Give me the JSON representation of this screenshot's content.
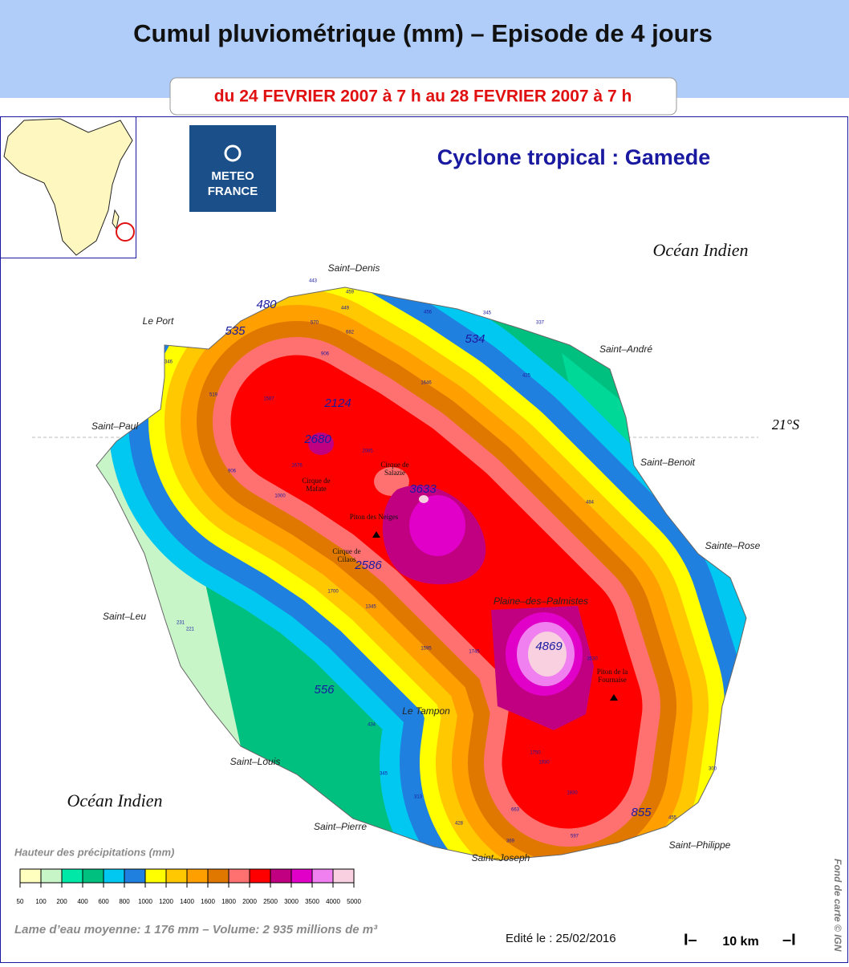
{
  "header": {
    "title": "Cumul pluviométrique (mm) – Episode de 4 jours",
    "period": "du 24 FEVRIER 2007 à 7 h au 28 FEVRIER 2007 à 7 h"
  },
  "map": {
    "subtitle": "Cyclone tropical : Gamede",
    "logo": [
      "METEO",
      "FRANCE"
    ],
    "oceans": [
      "Océan Indien",
      "Océan Indien"
    ],
    "latitude": "21°S",
    "towns": [
      "Saint–Denis",
      "Le Port",
      "Saint–André",
      "Saint–Paul",
      "Saint–Benoit",
      "Sainte–Rose",
      "Saint–Leu",
      "Plaine–des–Palmistes",
      "Le Tampon",
      "Saint–Louis",
      "Saint–Pierre",
      "Saint–Philippe",
      "Saint–Joseph"
    ],
    "relief": [
      [
        "Cirque de",
        "Salazie"
      ],
      [
        "Cirque de",
        "Mafate"
      ],
      [
        "Piton des Neiges"
      ],
      [
        "Cirque de",
        "Cilaos"
      ],
      [
        "Piton de la",
        "Fournaise"
      ]
    ],
    "stations_major": [
      "480",
      "535",
      "534",
      "2124",
      "2680",
      "3633",
      "2586",
      "4869",
      "556",
      "855"
    ],
    "stations_minor": [
      "443",
      "459",
      "449",
      "456",
      "345",
      "337",
      "570",
      "682",
      "906",
      "425",
      "346",
      "519",
      "1587",
      "1646",
      "2085",
      "1676",
      "906",
      "1000",
      "484",
      "1700",
      "1345",
      "231",
      "221",
      "1595",
      "1745",
      "3530",
      "434",
      "345",
      "313",
      "1750",
      "1930",
      "1830",
      "300",
      "455",
      "428",
      "663",
      "597",
      "369"
    ]
  },
  "legend": {
    "title": "Hauteur des précipitations (mm)",
    "ticks": [
      50,
      100,
      200,
      400,
      600,
      800,
      1000,
      1200,
      1400,
      1600,
      1800,
      2000,
      2500,
      3000,
      3500,
      4000,
      5000
    ],
    "colors": [
      "#ffffc0",
      "#c8f5c8",
      "#00e8a8",
      "#00c080",
      "#00c8f0",
      "#2080e0",
      "#ffff00",
      "#ffc800",
      "#ffa000",
      "#e07800",
      "#ff7070",
      "#ff0000",
      "#c00080",
      "#e000c8",
      "#f080f0",
      "#f8d0e0"
    ]
  },
  "footer": {
    "summary": "Lame d’eau moyenne: 1 176 mm – Volume: 2 935 millions de m³",
    "edited": "Edité le : 25/02/2016",
    "scale": "10 km",
    "credit": "Fond de carte © IGN"
  }
}
